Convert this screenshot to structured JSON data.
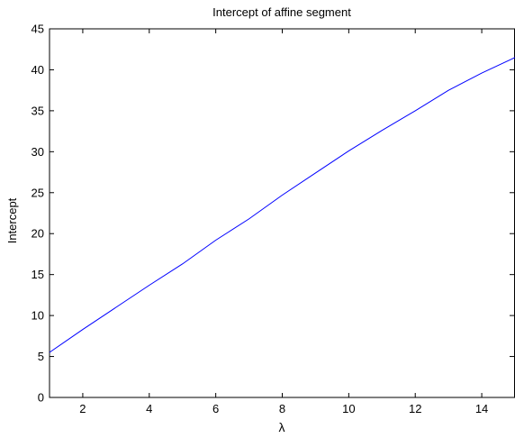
{
  "chart_data": {
    "type": "line",
    "title": "Intercept of affine segment",
    "xlabel": "λ",
    "ylabel": "Intercept",
    "xlim": [
      1,
      15
    ],
    "ylim": [
      0,
      45
    ],
    "xticks": [
      2,
      4,
      6,
      8,
      10,
      12,
      14
    ],
    "yticks": [
      0,
      5,
      10,
      15,
      20,
      25,
      30,
      35,
      40,
      45
    ],
    "grid": false,
    "series": [
      {
        "color": "#0000ff",
        "x": [
          1,
          2,
          3,
          4,
          5,
          6,
          7,
          8,
          9,
          10,
          11,
          12,
          13,
          14,
          15
        ],
        "y": [
          5.5,
          8.3,
          11.0,
          13.7,
          16.3,
          19.2,
          21.8,
          24.7,
          27.4,
          30.1,
          32.6,
          35.0,
          37.5,
          39.6,
          41.5
        ]
      }
    ]
  }
}
